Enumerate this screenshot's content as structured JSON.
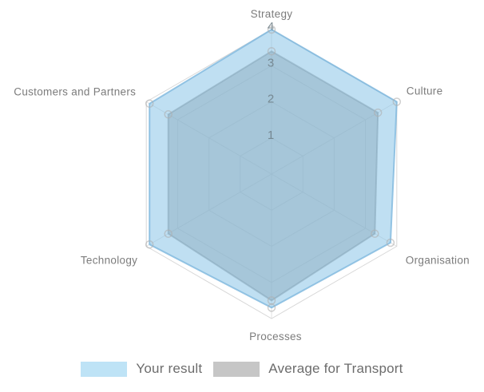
{
  "chart_data": {
    "type": "radar",
    "categories": [
      "Strategy",
      "Culture",
      "Organisation",
      "Processes",
      "Technology",
      "Customers and Partners"
    ],
    "axis_max": 4,
    "tick_labels": [
      "1",
      "2",
      "3",
      "4"
    ],
    "grid": true,
    "grid_shape": "hexagon",
    "legend_position": "bottom",
    "series": [
      {
        "name": "Your result",
        "values": [
          4.0,
          4.0,
          3.8,
          3.7,
          3.9,
          3.9
        ],
        "color": "#8bc5e8",
        "fill": "rgba(139,197,232,0.55)",
        "stroke": "rgba(120,180,220,0.75)"
      },
      {
        "name": "Average for Transport",
        "values": [
          3.4,
          3.4,
          3.3,
          3.5,
          3.3,
          3.3
        ],
        "color": "#8a8a8a",
        "fill": "rgba(138,138,138,0.48)",
        "stroke": "rgba(120,120,120,0.5)"
      }
    ],
    "marker": "circle-outline",
    "colors": {
      "grid_line": "#e1e1e1",
      "outer_ring": "#d8d8d8",
      "tick_label": "#6f7f87",
      "axis_label": "#7c7c7c",
      "marker_stroke": "rgba(175,175,175,0.6)"
    }
  },
  "legend": {
    "items": [
      {
        "label": "Your result",
        "swatch": "#bee3f6"
      },
      {
        "label": "Average for Transport",
        "swatch": "#c6c6c6"
      }
    ]
  }
}
